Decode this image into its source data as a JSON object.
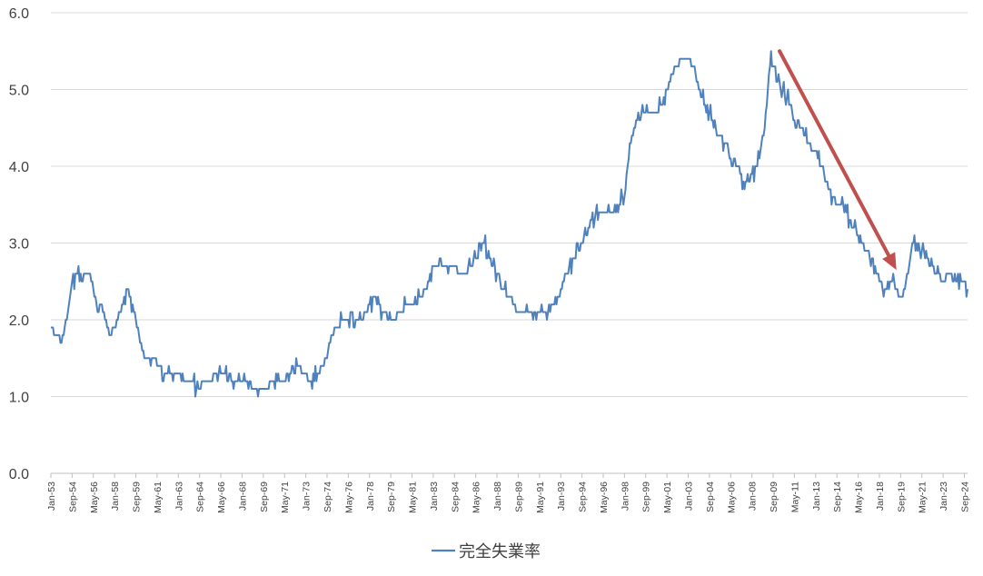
{
  "chart_data": {
    "type": "line",
    "title": "",
    "xlabel": "",
    "ylabel": "",
    "x_range": [
      "Jan-53",
      "Dec-24"
    ],
    "ylim": [
      0.0,
      6.0
    ],
    "yticks": [
      "0.0",
      "1.0",
      "2.0",
      "3.0",
      "4.0",
      "5.0",
      "6.0"
    ],
    "xticks": [
      "Jan-53",
      "Sep-54",
      "May-56",
      "Jan-58",
      "Sep-59",
      "May-61",
      "Jan-63",
      "Sep-64",
      "May-66",
      "Jan-68",
      "Sep-69",
      "May-71",
      "Jan-73",
      "Sep-74",
      "May-76",
      "Jan-78",
      "Sep-79",
      "May-81",
      "Jan-83",
      "Sep-84",
      "May-86",
      "Jan-88",
      "Sep-89",
      "May-91",
      "Jan-93",
      "Sep-94",
      "May-96",
      "Jan-98",
      "Sep-99",
      "May-01",
      "Jan-03",
      "Sep-04",
      "May-06",
      "Jan-08",
      "Sep-09",
      "May-11",
      "Jan-13",
      "Sep-14",
      "May-16",
      "Jan-18",
      "Sep-19",
      "May-21",
      "Jan-23",
      "Sep-24"
    ],
    "grid": true,
    "legend_position": "bottom",
    "series": [
      {
        "name": "完全失業率",
        "color": "#4F81BD",
        "points": [
          [
            "Jan-53",
            1.9
          ],
          [
            "Jun-53",
            1.8
          ],
          [
            "Oct-53",
            1.7
          ],
          [
            "Jan-54",
            1.8
          ],
          [
            "Jun-54",
            2.2
          ],
          [
            "Sep-54",
            2.5
          ],
          [
            "Jan-55",
            2.6
          ],
          [
            "Jun-55",
            2.5
          ],
          [
            "Sep-55",
            2.6
          ],
          [
            "Jan-56",
            2.6
          ],
          [
            "May-56",
            2.4
          ],
          [
            "Sep-56",
            2.1
          ],
          [
            "Jan-57",
            2.2
          ],
          [
            "Jun-57",
            1.9
          ],
          [
            "Sep-57",
            1.8
          ],
          [
            "Jan-58",
            1.9
          ],
          [
            "Jun-58",
            2.1
          ],
          [
            "Sep-58",
            2.2
          ],
          [
            "Jan-59",
            2.4
          ],
          [
            "Jun-59",
            2.2
          ],
          [
            "Sep-59",
            2.0
          ],
          [
            "Jan-60",
            1.7
          ],
          [
            "Jun-60",
            1.5
          ],
          [
            "Jan-61",
            1.5
          ],
          [
            "May-61",
            1.4
          ],
          [
            "Jan-62",
            1.3
          ],
          [
            "Jun-62",
            1.3
          ],
          [
            "Jan-63",
            1.3
          ],
          [
            "Jun-63",
            1.2
          ],
          [
            "Jan-64",
            1.2
          ],
          [
            "Sep-64",
            1.1
          ],
          [
            "Jan-65",
            1.2
          ],
          [
            "Jun-65",
            1.2
          ],
          [
            "Jan-66",
            1.3
          ],
          [
            "May-66",
            1.3
          ],
          [
            "Jan-67",
            1.3
          ],
          [
            "Jun-67",
            1.2
          ],
          [
            "Jan-68",
            1.2
          ],
          [
            "Jun-68",
            1.2
          ],
          [
            "Jan-69",
            1.1
          ],
          [
            "Sep-69",
            1.1
          ],
          [
            "Jan-70",
            1.1
          ],
          [
            "Jun-70",
            1.2
          ],
          [
            "Jan-71",
            1.2
          ],
          [
            "May-71",
            1.2
          ],
          [
            "Jan-72",
            1.4
          ],
          [
            "Jun-72",
            1.4
          ],
          [
            "Jan-73",
            1.3
          ],
          [
            "Jun-73",
            1.2
          ],
          [
            "Jan-74",
            1.3
          ],
          [
            "Sep-74",
            1.5
          ],
          [
            "Jan-75",
            1.8
          ],
          [
            "Jun-75",
            1.9
          ],
          [
            "Jan-76",
            2.0
          ],
          [
            "May-76",
            2.0
          ],
          [
            "Jan-77",
            2.0
          ],
          [
            "Jun-77",
            2.0
          ],
          [
            "Jan-78",
            2.2
          ],
          [
            "Jun-78",
            2.3
          ],
          [
            "Jan-79",
            2.1
          ],
          [
            "Sep-79",
            2.0
          ],
          [
            "Jan-80",
            2.0
          ],
          [
            "Jun-80",
            2.1
          ],
          [
            "Jan-81",
            2.2
          ],
          [
            "May-81",
            2.2
          ],
          [
            "Jan-82",
            2.3
          ],
          [
            "Jun-82",
            2.4
          ],
          [
            "Jan-83",
            2.7
          ],
          [
            "Jun-83",
            2.7
          ],
          [
            "Jan-84",
            2.7
          ],
          [
            "Sep-84",
            2.7
          ],
          [
            "Jan-85",
            2.6
          ],
          [
            "Jun-85",
            2.6
          ],
          [
            "Jan-86",
            2.7
          ],
          [
            "May-86",
            2.8
          ],
          [
            "Jan-87",
            3.0
          ],
          [
            "Jun-87",
            2.8
          ],
          [
            "Jan-88",
            2.6
          ],
          [
            "Jun-88",
            2.4
          ],
          [
            "Jan-89",
            2.3
          ],
          [
            "Sep-89",
            2.1
          ],
          [
            "Jan-90",
            2.1
          ],
          [
            "Jun-90",
            2.1
          ],
          [
            "Jan-91",
            2.1
          ],
          [
            "May-91",
            2.1
          ],
          [
            "Jan-92",
            2.1
          ],
          [
            "Jun-92",
            2.2
          ],
          [
            "Jan-93",
            2.4
          ],
          [
            "Jun-93",
            2.6
          ],
          [
            "Jan-94",
            2.8
          ],
          [
            "Sep-94",
            3.0
          ],
          [
            "Jan-95",
            3.1
          ],
          [
            "Jun-95",
            3.3
          ],
          [
            "Jan-96",
            3.4
          ],
          [
            "May-96",
            3.4
          ],
          [
            "Jan-97",
            3.4
          ],
          [
            "Jun-97",
            3.5
          ],
          [
            "Jan-98",
            3.6
          ],
          [
            "Jun-98",
            4.3
          ],
          [
            "Jan-99",
            4.6
          ],
          [
            "Sep-99",
            4.7
          ],
          [
            "Jan-00",
            4.7
          ],
          [
            "Jun-00",
            4.7
          ],
          [
            "Jan-01",
            4.8
          ],
          [
            "May-01",
            5.0
          ],
          [
            "Jan-02",
            5.3
          ],
          [
            "Jun-02",
            5.4
          ],
          [
            "Jan-03",
            5.4
          ],
          [
            "Jun-03",
            5.3
          ],
          [
            "Jan-04",
            4.9
          ],
          [
            "Sep-04",
            4.7
          ],
          [
            "Jan-05",
            4.5
          ],
          [
            "Jun-05",
            4.4
          ],
          [
            "Jan-06",
            4.3
          ],
          [
            "May-06",
            4.1
          ],
          [
            "Jan-07",
            4.0
          ],
          [
            "Jun-07",
            3.7
          ],
          [
            "Jan-08",
            3.9
          ],
          [
            "Jun-08",
            4.0
          ],
          [
            "Jan-09",
            4.5
          ],
          [
            "Jul-09",
            5.5
          ],
          [
            "Sep-09",
            5.3
          ],
          [
            "Jan-10",
            5.1
          ],
          [
            "Jun-10",
            5.0
          ],
          [
            "Jan-11",
            4.8
          ],
          [
            "May-11",
            4.6
          ],
          [
            "Jan-12",
            4.5
          ],
          [
            "Jun-12",
            4.3
          ],
          [
            "Jan-13",
            4.2
          ],
          [
            "Jun-13",
            4.0
          ],
          [
            "Jan-14",
            3.7
          ],
          [
            "Sep-14",
            3.5
          ],
          [
            "Jan-15",
            3.5
          ],
          [
            "Jun-15",
            3.4
          ],
          [
            "Jan-16",
            3.2
          ],
          [
            "May-16",
            3.1
          ],
          [
            "Jan-17",
            2.9
          ],
          [
            "Jun-17",
            2.8
          ],
          [
            "Jan-18",
            2.5
          ],
          [
            "Jun-18",
            2.4
          ],
          [
            "Jan-19",
            2.5
          ],
          [
            "Sep-19",
            2.3
          ],
          [
            "Jan-20",
            2.4
          ],
          [
            "Jun-20",
            2.8
          ],
          [
            "Oct-20",
            3.1
          ],
          [
            "Jan-21",
            2.9
          ],
          [
            "May-21",
            2.9
          ],
          [
            "Jan-22",
            2.7
          ],
          [
            "Jun-22",
            2.6
          ],
          [
            "Jan-23",
            2.5
          ],
          [
            "Jun-23",
            2.6
          ],
          [
            "Jan-24",
            2.5
          ],
          [
            "Sep-24",
            2.5
          ],
          [
            "Dec-24",
            2.4
          ]
        ]
      }
    ],
    "annotations": [
      {
        "type": "arrow",
        "color": "#C0504D",
        "from": [
          "Mar-10",
          5.5
        ],
        "to": [
          "May-19",
          2.65
        ]
      }
    ]
  }
}
